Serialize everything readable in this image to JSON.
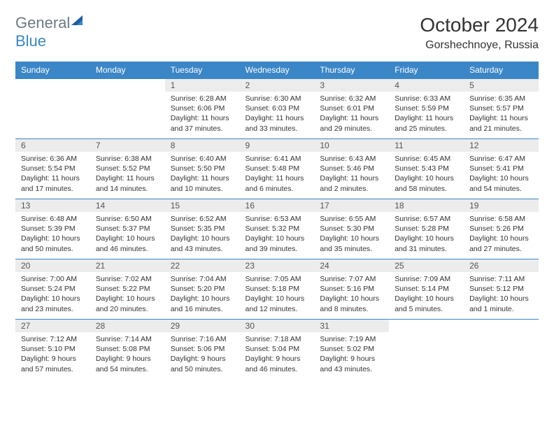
{
  "logo": {
    "text1": "General",
    "text2": "Blue"
  },
  "title": "October 2024",
  "location": "Gorshechnoye, Russia",
  "colors": {
    "header_bg": "#3b86c6",
    "header_text": "#ffffff",
    "daynum_bg": "#ececec",
    "border": "#3b86c6",
    "logo_gray": "#6b7a85",
    "logo_blue": "#3b86c6"
  },
  "weekdays": [
    "Sunday",
    "Monday",
    "Tuesday",
    "Wednesday",
    "Thursday",
    "Friday",
    "Saturday"
  ],
  "weeks": [
    [
      null,
      null,
      {
        "n": "1",
        "sr": "Sunrise: 6:28 AM",
        "ss": "Sunset: 6:06 PM",
        "dl": "Daylight: 11 hours and 37 minutes."
      },
      {
        "n": "2",
        "sr": "Sunrise: 6:30 AM",
        "ss": "Sunset: 6:03 PM",
        "dl": "Daylight: 11 hours and 33 minutes."
      },
      {
        "n": "3",
        "sr": "Sunrise: 6:32 AM",
        "ss": "Sunset: 6:01 PM",
        "dl": "Daylight: 11 hours and 29 minutes."
      },
      {
        "n": "4",
        "sr": "Sunrise: 6:33 AM",
        "ss": "Sunset: 5:59 PM",
        "dl": "Daylight: 11 hours and 25 minutes."
      },
      {
        "n": "5",
        "sr": "Sunrise: 6:35 AM",
        "ss": "Sunset: 5:57 PM",
        "dl": "Daylight: 11 hours and 21 minutes."
      }
    ],
    [
      {
        "n": "6",
        "sr": "Sunrise: 6:36 AM",
        "ss": "Sunset: 5:54 PM",
        "dl": "Daylight: 11 hours and 17 minutes."
      },
      {
        "n": "7",
        "sr": "Sunrise: 6:38 AM",
        "ss": "Sunset: 5:52 PM",
        "dl": "Daylight: 11 hours and 14 minutes."
      },
      {
        "n": "8",
        "sr": "Sunrise: 6:40 AM",
        "ss": "Sunset: 5:50 PM",
        "dl": "Daylight: 11 hours and 10 minutes."
      },
      {
        "n": "9",
        "sr": "Sunrise: 6:41 AM",
        "ss": "Sunset: 5:48 PM",
        "dl": "Daylight: 11 hours and 6 minutes."
      },
      {
        "n": "10",
        "sr": "Sunrise: 6:43 AM",
        "ss": "Sunset: 5:46 PM",
        "dl": "Daylight: 11 hours and 2 minutes."
      },
      {
        "n": "11",
        "sr": "Sunrise: 6:45 AM",
        "ss": "Sunset: 5:43 PM",
        "dl": "Daylight: 10 hours and 58 minutes."
      },
      {
        "n": "12",
        "sr": "Sunrise: 6:47 AM",
        "ss": "Sunset: 5:41 PM",
        "dl": "Daylight: 10 hours and 54 minutes."
      }
    ],
    [
      {
        "n": "13",
        "sr": "Sunrise: 6:48 AM",
        "ss": "Sunset: 5:39 PM",
        "dl": "Daylight: 10 hours and 50 minutes."
      },
      {
        "n": "14",
        "sr": "Sunrise: 6:50 AM",
        "ss": "Sunset: 5:37 PM",
        "dl": "Daylight: 10 hours and 46 minutes."
      },
      {
        "n": "15",
        "sr": "Sunrise: 6:52 AM",
        "ss": "Sunset: 5:35 PM",
        "dl": "Daylight: 10 hours and 43 minutes."
      },
      {
        "n": "16",
        "sr": "Sunrise: 6:53 AM",
        "ss": "Sunset: 5:32 PM",
        "dl": "Daylight: 10 hours and 39 minutes."
      },
      {
        "n": "17",
        "sr": "Sunrise: 6:55 AM",
        "ss": "Sunset: 5:30 PM",
        "dl": "Daylight: 10 hours and 35 minutes."
      },
      {
        "n": "18",
        "sr": "Sunrise: 6:57 AM",
        "ss": "Sunset: 5:28 PM",
        "dl": "Daylight: 10 hours and 31 minutes."
      },
      {
        "n": "19",
        "sr": "Sunrise: 6:58 AM",
        "ss": "Sunset: 5:26 PM",
        "dl": "Daylight: 10 hours and 27 minutes."
      }
    ],
    [
      {
        "n": "20",
        "sr": "Sunrise: 7:00 AM",
        "ss": "Sunset: 5:24 PM",
        "dl": "Daylight: 10 hours and 23 minutes."
      },
      {
        "n": "21",
        "sr": "Sunrise: 7:02 AM",
        "ss": "Sunset: 5:22 PM",
        "dl": "Daylight: 10 hours and 20 minutes."
      },
      {
        "n": "22",
        "sr": "Sunrise: 7:04 AM",
        "ss": "Sunset: 5:20 PM",
        "dl": "Daylight: 10 hours and 16 minutes."
      },
      {
        "n": "23",
        "sr": "Sunrise: 7:05 AM",
        "ss": "Sunset: 5:18 PM",
        "dl": "Daylight: 10 hours and 12 minutes."
      },
      {
        "n": "24",
        "sr": "Sunrise: 7:07 AM",
        "ss": "Sunset: 5:16 PM",
        "dl": "Daylight: 10 hours and 8 minutes."
      },
      {
        "n": "25",
        "sr": "Sunrise: 7:09 AM",
        "ss": "Sunset: 5:14 PM",
        "dl": "Daylight: 10 hours and 5 minutes."
      },
      {
        "n": "26",
        "sr": "Sunrise: 7:11 AM",
        "ss": "Sunset: 5:12 PM",
        "dl": "Daylight: 10 hours and 1 minute."
      }
    ],
    [
      {
        "n": "27",
        "sr": "Sunrise: 7:12 AM",
        "ss": "Sunset: 5:10 PM",
        "dl": "Daylight: 9 hours and 57 minutes."
      },
      {
        "n": "28",
        "sr": "Sunrise: 7:14 AM",
        "ss": "Sunset: 5:08 PM",
        "dl": "Daylight: 9 hours and 54 minutes."
      },
      {
        "n": "29",
        "sr": "Sunrise: 7:16 AM",
        "ss": "Sunset: 5:06 PM",
        "dl": "Daylight: 9 hours and 50 minutes."
      },
      {
        "n": "30",
        "sr": "Sunrise: 7:18 AM",
        "ss": "Sunset: 5:04 PM",
        "dl": "Daylight: 9 hours and 46 minutes."
      },
      {
        "n": "31",
        "sr": "Sunrise: 7:19 AM",
        "ss": "Sunset: 5:02 PM",
        "dl": "Daylight: 9 hours and 43 minutes."
      },
      null,
      null
    ]
  ]
}
